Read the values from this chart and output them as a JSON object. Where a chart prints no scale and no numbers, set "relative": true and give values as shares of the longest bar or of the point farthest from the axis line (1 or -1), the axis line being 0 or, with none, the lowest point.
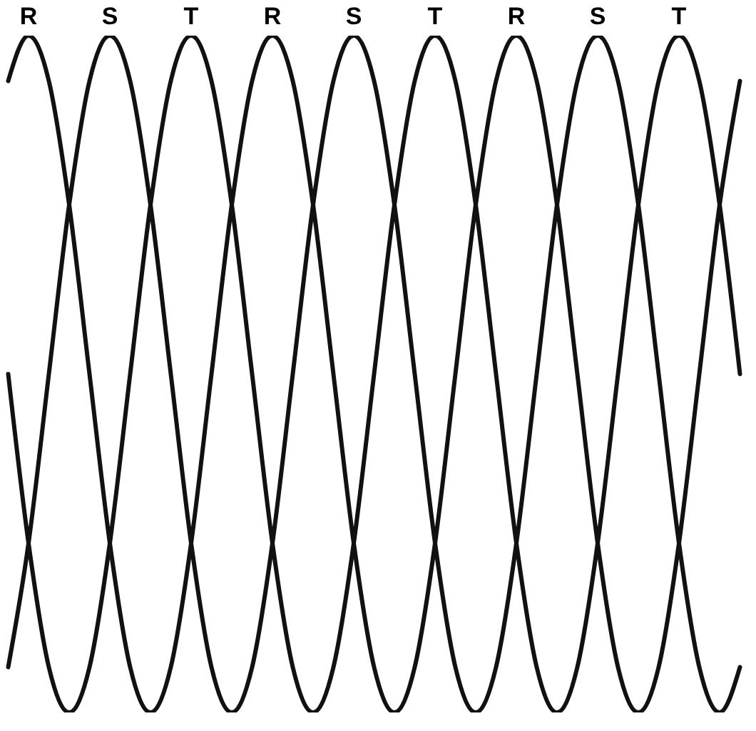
{
  "chart_data": {
    "type": "line",
    "relative": true,
    "tick_labels": false,
    "marker": "none",
    "line_style": "solid",
    "categories": [
      null,
      null,
      null,
      null,
      null,
      null,
      null,
      null,
      null,
      null,
      null,
      null,
      null,
      null,
      null,
      null,
      null,
      null,
      null,
      null,
      null,
      null,
      null,
      null,
      null,
      null,
      null,
      null,
      null,
      null,
      null,
      null,
      null,
      null,
      null,
      null,
      null
    ],
    "series": [
      {
        "name": "R",
        "color": "#111111",
        "values": [
          0.933,
          1,
          0.933,
          0.75,
          0.5,
          0.25,
          0.067,
          0,
          0.067,
          0.25,
          0.5,
          0.75,
          0.933,
          1,
          0.933,
          0.75,
          0.5,
          0.25,
          0.067,
          0,
          0.067,
          0.25,
          0.5,
          0.75,
          0.933,
          1,
          0.933,
          0.75,
          0.5,
          0.25,
          0.067,
          0,
          0.067,
          0.25,
          0.5,
          0.75,
          0.933
        ]
      },
      {
        "name": "S",
        "color": "#111111",
        "values": [
          0.067,
          0.25,
          0.5,
          0.75,
          0.933,
          1,
          0.933,
          0.75,
          0.5,
          0.25,
          0.067,
          0,
          0.067,
          0.25,
          0.5,
          0.75,
          0.933,
          1,
          0.933,
          0.75,
          0.5,
          0.25,
          0.067,
          0,
          0.067,
          0.25,
          0.5,
          0.75,
          0.933,
          1,
          0.933,
          0.75,
          0.5,
          0.25,
          0.067,
          0,
          0.067
        ]
      },
      {
        "name": "T",
        "color": "#111111",
        "values": [
          0.5,
          0.25,
          0.067,
          0,
          0.067,
          0.25,
          0.5,
          0.75,
          0.933,
          1,
          0.933,
          0.75,
          0.5,
          0.25,
          0.067,
          0,
          0.067,
          0.25,
          0.5,
          0.75,
          0.933,
          1,
          0.933,
          0.75,
          0.5,
          0.25,
          0.067,
          0,
          0.067,
          0.25,
          0.5,
          0.75,
          0.933,
          1,
          0.933,
          0.75,
          0.5
        ]
      }
    ]
  }
}
